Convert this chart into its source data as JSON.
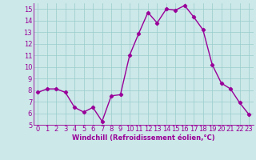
{
  "x": [
    0,
    1,
    2,
    3,
    4,
    5,
    6,
    7,
    8,
    9,
    10,
    11,
    12,
    13,
    14,
    15,
    16,
    17,
    18,
    19,
    20,
    21,
    22,
    23
  ],
  "y": [
    7.8,
    8.1,
    8.1,
    7.8,
    6.5,
    6.1,
    6.5,
    5.3,
    7.5,
    7.6,
    11.0,
    12.9,
    14.7,
    13.8,
    15.0,
    14.9,
    15.3,
    14.3,
    13.2,
    10.2,
    8.6,
    8.1,
    6.9,
    5.9
  ],
  "line_color": "#990099",
  "marker": "D",
  "marker_size": 2.2,
  "linewidth": 1.0,
  "background_color": "#cce8e8",
  "grid_color": "#99cccc",
  "xlabel": "Windchill (Refroidissement éolien,°C)",
  "xlabel_color": "#990099",
  "xlabel_fontsize": 6.0,
  "tick_color": "#990099",
  "tick_fontsize": 6.0,
  "ylim": [
    5,
    15.5
  ],
  "xlim": [
    -0.5,
    23.5
  ],
  "yticks": [
    5,
    6,
    7,
    8,
    9,
    10,
    11,
    12,
    13,
    14,
    15
  ],
  "xticks": [
    0,
    1,
    2,
    3,
    4,
    5,
    6,
    7,
    8,
    9,
    10,
    11,
    12,
    13,
    14,
    15,
    16,
    17,
    18,
    19,
    20,
    21,
    22,
    23
  ]
}
